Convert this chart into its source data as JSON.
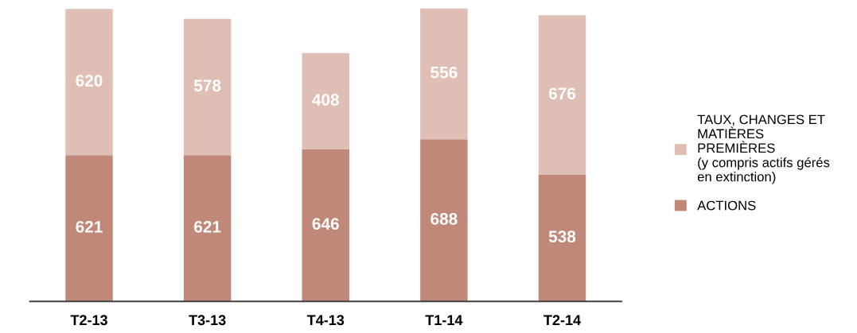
{
  "chart_data": {
    "type": "bar",
    "stacked": true,
    "data_labels": true,
    "legend": "right",
    "grid": false,
    "tick_labels": "x",
    "categories": [
      "T2-13",
      "T3-13",
      "T4-13",
      "T1-14",
      "T2-14"
    ],
    "series": [
      {
        "name": "ACTIONS",
        "color": "#bf8878",
        "values": [
          621,
          621,
          646,
          688,
          538
        ]
      },
      {
        "name": "TAUX, CHANGES ET\nMATIÈRES\nPREMIÈRES\n(y compris actifs gérés\nen extinction)",
        "color": "#dfbfb5",
        "values": [
          620,
          578,
          408,
          556,
          676
        ]
      }
    ]
  }
}
